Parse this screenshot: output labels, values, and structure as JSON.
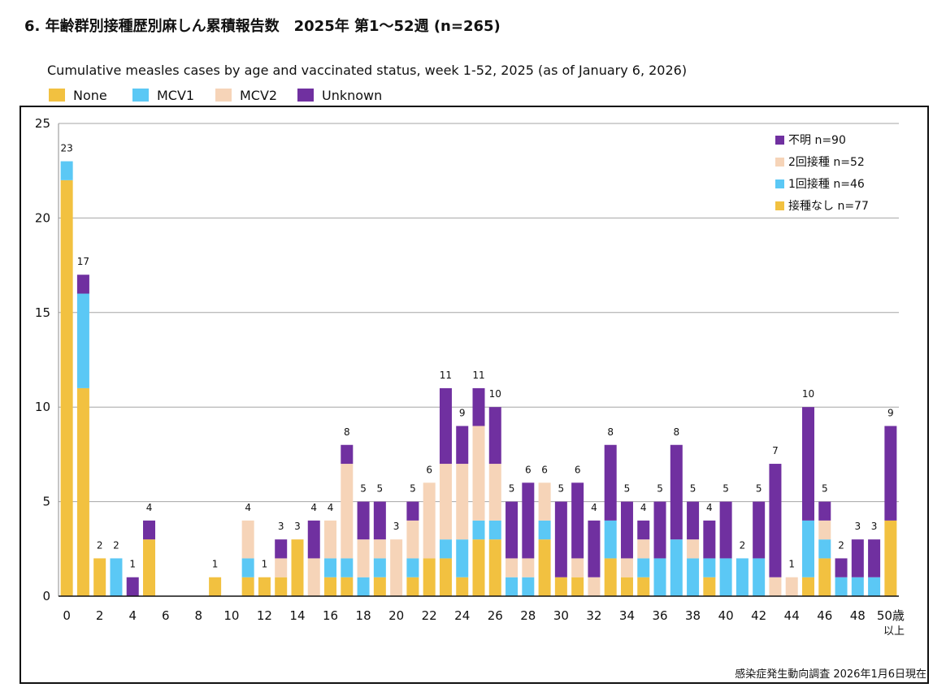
{
  "title": "6. 年齢群別接種歴別麻しん累積報告数　2025年 第1～52週 (n=265)",
  "subtitle": "Cumulative measles cases by age and vaccinated status, week 1-52, 2025 (as of January 6, 2026)",
  "top_legend": [
    {
      "label": "None",
      "color": "#F2C140"
    },
    {
      "label": "MCV1",
      "color": "#5BC8F5"
    },
    {
      "label": "MCV2",
      "color": "#F6D4B8"
    },
    {
      "label": "Unknown",
      "color": "#7030A0"
    }
  ],
  "inner_legend": [
    {
      "label": "不明 n=90",
      "color": "#7030A0"
    },
    {
      "label": "2回接種 n=52",
      "color": "#F6D4B8"
    },
    {
      "label": "1回接種 n=46",
      "color": "#5BC8F5"
    },
    {
      "label": "接種なし n=77",
      "color": "#F2C140"
    }
  ],
  "source_note": "感染症発生動向調査 2026年1月6日現在",
  "x_last_suffix": "以上",
  "chart_data": {
    "type": "bar",
    "stacked": true,
    "title": "Cumulative measles cases by age and vaccinated status, week 1-52, 2025 (as of January 6, 2026)",
    "xlabel": "",
    "ylabel": "",
    "ylim": [
      0,
      25
    ],
    "yticks": [
      "0",
      "5",
      "10",
      "15",
      "20",
      "25"
    ],
    "grid": true,
    "legend_position": "top-right",
    "categories": [
      "0",
      "1",
      "2",
      "3",
      "4",
      "5",
      "6",
      "7",
      "8",
      "9",
      "10",
      "11",
      "12",
      "13",
      "14",
      "15",
      "16",
      "17",
      "18",
      "19",
      "20",
      "21",
      "22",
      "23",
      "24",
      "25",
      "26",
      "27",
      "28",
      "29",
      "30",
      "31",
      "32",
      "33",
      "34",
      "35",
      "36",
      "37",
      "38",
      "39",
      "40",
      "41",
      "42",
      "43",
      "44",
      "45",
      "46",
      "47",
      "48",
      "49",
      "50歳"
    ],
    "x_tick_labels": [
      "0",
      "",
      "2",
      "",
      "4",
      "",
      "6",
      "",
      "8",
      "",
      "10",
      "",
      "12",
      "",
      "14",
      "",
      "16",
      "",
      "18",
      "",
      "20",
      "",
      "22",
      "",
      "24",
      "",
      "26",
      "",
      "28",
      "",
      "30",
      "",
      "32",
      "",
      "34",
      "",
      "36",
      "",
      "38",
      "",
      "40",
      "",
      "42",
      "",
      "44",
      "",
      "46",
      "",
      "48",
      "",
      "50歳"
    ],
    "series": [
      {
        "name": "None",
        "color": "#F2C140",
        "values": [
          22,
          11,
          2,
          0,
          0,
          3,
          0,
          0,
          0,
          1,
          0,
          1,
          1,
          1,
          3,
          0,
          1,
          1,
          0,
          1,
          0,
          1,
          2,
          2,
          1,
          3,
          3,
          0,
          0,
          3,
          1,
          1,
          0,
          2,
          1,
          1,
          0,
          0,
          0,
          1,
          0,
          0,
          0,
          0,
          0,
          1,
          2,
          0,
          0,
          0,
          4
        ]
      },
      {
        "name": "MCV1",
        "color": "#5BC8F5",
        "values": [
          1,
          5,
          0,
          2,
          0,
          0,
          0,
          0,
          0,
          0,
          0,
          1,
          0,
          0,
          0,
          0,
          1,
          1,
          1,
          1,
          0,
          1,
          0,
          1,
          2,
          1,
          1,
          1,
          1,
          1,
          0,
          0,
          0,
          2,
          0,
          1,
          2,
          3,
          2,
          1,
          2,
          2,
          2,
          0,
          0,
          3,
          1,
          1,
          1,
          1,
          0
        ]
      },
      {
        "name": "MCV2",
        "color": "#F6D4B8",
        "values": [
          0,
          0,
          0,
          0,
          0,
          0,
          0,
          0,
          0,
          0,
          0,
          2,
          0,
          1,
          0,
          2,
          2,
          5,
          2,
          1,
          3,
          2,
          4,
          4,
          4,
          5,
          3,
          1,
          1,
          2,
          0,
          1,
          1,
          0,
          1,
          1,
          0,
          0,
          1,
          0,
          0,
          0,
          0,
          1,
          1,
          0,
          1,
          0,
          0,
          0,
          0
        ]
      },
      {
        "name": "Unknown",
        "color": "#7030A0",
        "values": [
          0,
          1,
          0,
          0,
          1,
          1,
          0,
          0,
          0,
          0,
          0,
          0,
          0,
          1,
          0,
          2,
          0,
          1,
          2,
          2,
          0,
          1,
          0,
          4,
          2,
          2,
          3,
          3,
          4,
          0,
          4,
          4,
          3,
          4,
          3,
          1,
          3,
          5,
          2,
          2,
          3,
          0,
          3,
          6,
          0,
          6,
          1,
          1,
          2,
          2,
          5
        ]
      }
    ],
    "totals": [
      "23",
      "17",
      "2",
      "2",
      "1",
      "4",
      "",
      "",
      "",
      "1",
      "",
      "4",
      "1",
      "3",
      "3",
      "4",
      "4",
      "8",
      "5",
      "5",
      "3",
      "5",
      "6",
      "11",
      "9",
      "11",
      "10",
      "5",
      "6",
      "6",
      "5",
      "6",
      "4",
      "8",
      "5",
      "4",
      "5",
      "8",
      "5",
      "4",
      "5",
      "2",
      "5",
      "7",
      "1",
      "10",
      "5",
      "2",
      "3",
      "3",
      "9"
    ]
  }
}
